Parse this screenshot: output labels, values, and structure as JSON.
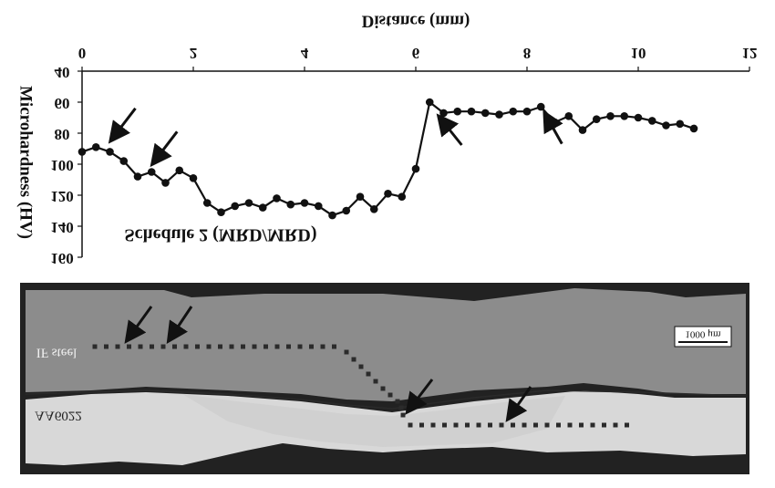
{
  "chart_data": {
    "type": "line",
    "title": "Schedule 2 (MRD/MRD)",
    "xlabel": "Distance (mm)",
    "ylabel": "Microhardness (HV)",
    "xlim": [
      0,
      12
    ],
    "ylim": [
      40,
      160
    ],
    "y_inverted": true,
    "image_mirrored_vertically": true,
    "x_ticks": [
      "0",
      "2",
      "4",
      "6",
      "8",
      "10",
      "12"
    ],
    "y_ticks": [
      "40",
      "60",
      "80",
      "100",
      "120",
      "140",
      "160"
    ],
    "grid": false,
    "series": [
      {
        "points": [
          [
            0.0,
            92
          ],
          [
            0.25,
            89
          ],
          [
            0.5,
            92
          ],
          [
            0.75,
            98
          ],
          [
            1.0,
            108
          ],
          [
            1.25,
            105
          ],
          [
            1.5,
            112
          ],
          [
            1.75,
            104
          ],
          [
            2.0,
            109
          ],
          [
            2.25,
            125
          ],
          [
            2.5,
            131
          ],
          [
            2.75,
            127
          ],
          [
            3.0,
            125
          ],
          [
            3.25,
            128
          ],
          [
            3.5,
            122
          ],
          [
            3.75,
            126
          ],
          [
            4.0,
            125
          ],
          [
            4.25,
            127
          ],
          [
            4.5,
            133
          ],
          [
            4.75,
            130
          ],
          [
            5.0,
            121
          ],
          [
            5.25,
            129
          ],
          [
            5.5,
            119
          ],
          [
            5.75,
            121
          ],
          [
            6.0,
            103
          ],
          [
            6.25,
            60
          ],
          [
            6.5,
            67
          ],
          [
            6.75,
            66
          ],
          [
            7.0,
            66
          ],
          [
            7.25,
            67
          ],
          [
            7.5,
            68
          ],
          [
            7.75,
            66
          ],
          [
            8.0,
            66
          ],
          [
            8.25,
            63
          ],
          [
            8.5,
            73
          ],
          [
            8.75,
            69
          ],
          [
            9.0,
            78
          ],
          [
            9.25,
            71
          ],
          [
            9.5,
            69
          ],
          [
            9.75,
            69
          ],
          [
            10.0,
            70
          ],
          [
            10.25,
            72
          ],
          [
            10.5,
            75
          ],
          [
            10.75,
            74
          ],
          [
            11.0,
            77
          ]
        ]
      }
    ],
    "arrows": [
      {
        "x": 0.5,
        "y": 84
      },
      {
        "x": 1.25,
        "y": 99
      },
      {
        "x": 6.4,
        "y": 70
      },
      {
        "x": 8.3,
        "y": 68
      }
    ]
  },
  "micrograph": {
    "label_top_material": "IF steel",
    "label_bottom_material": "AA6022",
    "scale_bar_label": "1000 μm",
    "colors": {
      "steel": "#8f8f8f",
      "aluminum": "#d9d9d9",
      "background": "#222222",
      "indent": "#2b2b2b"
    }
  }
}
